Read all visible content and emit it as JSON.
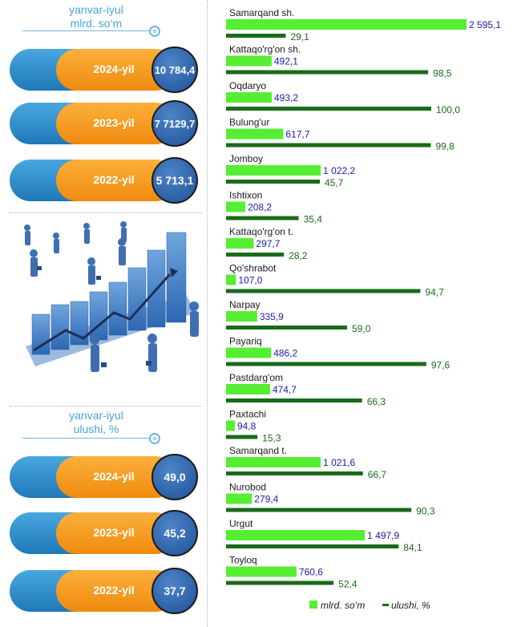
{
  "top_panel": {
    "caption_line1": "yanvar-iyul",
    "caption_line2": "mlrd. so‘m",
    "items": [
      {
        "year": "2024-yil",
        "value": "10 784,4"
      },
      {
        "year": "2023-yil",
        "value": "7 7129,7"
      },
      {
        "year": "2022-yil",
        "value": "5 713,1"
      }
    ]
  },
  "bottom_panel": {
    "caption_line1": "yanvar-iyul",
    "caption_line2": "ulushi, %",
    "items": [
      {
        "year": "2024-yil",
        "value": "49,0"
      },
      {
        "year": "2023-yil",
        "value": "45,2"
      },
      {
        "year": "2022-yil",
        "value": "37,7"
      }
    ]
  },
  "colors": {
    "bar_mlrd": "#55ee33",
    "bar_ulushi": "#1a6b1a",
    "label_mlrd": "#1a1aa6",
    "label_ulushi": "#1a6b1a",
    "pill_blue": "#2f8fd0",
    "pill_orange": "#f59a1e",
    "circle": "#2a5da8"
  },
  "chart_data": {
    "type": "bar",
    "orientation": "horizontal",
    "categories": [
      "Samarqand sh.",
      "Kattaqo'rg'on sh.",
      "Oqdaryo",
      "Bulung'ur",
      "Jomboy",
      "Ishtixon",
      "Kattaqo'rg'on t.",
      "Qo'shrabot",
      "Narpay",
      "Payariq",
      "Pastdarg'om",
      "Paxtachi",
      "Samarqand t.",
      "Nurobod",
      "Urgut",
      "Toyloq"
    ],
    "series": [
      {
        "name": "mlrd. so‘m",
        "values": [
          2595.1,
          492.1,
          493.2,
          617.7,
          1022.2,
          208.2,
          297.7,
          107.0,
          335.9,
          486.2,
          474.7,
          94.8,
          1021.6,
          279.4,
          1497.9,
          760.6
        ],
        "labels": [
          "2 595,1",
          "492,1",
          "493,2",
          "617,7",
          "1 022,2",
          "208,2",
          "297,7",
          "107,0",
          "335,9",
          "486,2",
          "474,7",
          "94,8",
          "1 021,6",
          "279,4",
          "1 497,9",
          "760,6"
        ]
      },
      {
        "name": "ulushi, %",
        "values": [
          29.1,
          98.5,
          100.0,
          99.8,
          45.7,
          35.4,
          28.2,
          94.7,
          59.0,
          97.6,
          66.3,
          15.3,
          66.7,
          90.3,
          84.1,
          52.4
        ],
        "labels": [
          "29,1",
          "98,5",
          "100,0",
          "99,8",
          "45,7",
          "35,4",
          "28,2",
          "94,7",
          "59,0",
          "97,6",
          "66,3",
          "15,3",
          "66,7",
          "90,3",
          "84,1",
          "52,4"
        ]
      }
    ],
    "legend_position": "bottom-right"
  }
}
